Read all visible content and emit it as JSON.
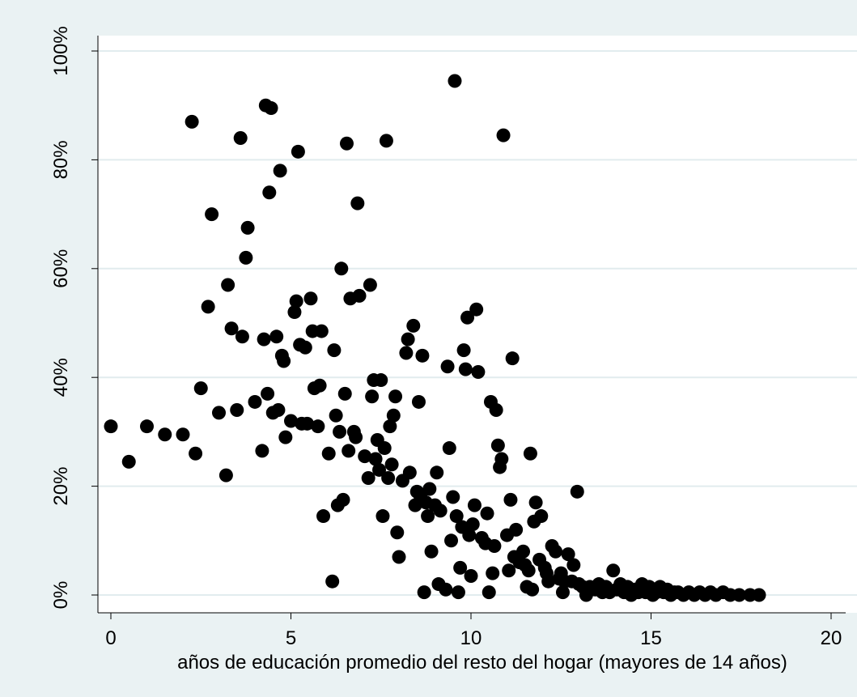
{
  "chart_data": {
    "type": "scatter",
    "title": "",
    "xlabel": "años de educación promedio del resto del hogar (mayores de 14 años)",
    "ylabel": "",
    "xlim": [
      0,
      20
    ],
    "ylim": [
      0,
      100
    ],
    "x_ticks": [
      0,
      5,
      10,
      15,
      20
    ],
    "x_tick_labels": [
      "0",
      "5",
      "10",
      "15",
      "20"
    ],
    "y_ticks": [
      0,
      20,
      40,
      60,
      80,
      100
    ],
    "y_tick_labels": [
      "0%",
      "20%",
      "40%",
      "60%",
      "80%",
      "100%"
    ],
    "grid": "horizontal",
    "legend": "none",
    "colors": {
      "background": "#eaf2f3",
      "plot_area": "#ffffff",
      "marker": "#000000",
      "grid": "#e2ecee"
    },
    "series": [
      {
        "points": [
          [
            0.0,
            31
          ],
          [
            0.5,
            24.5
          ],
          [
            1.0,
            31
          ],
          [
            1.5,
            29.5
          ],
          [
            2.0,
            29.5
          ],
          [
            2.25,
            87
          ],
          [
            2.35,
            26
          ],
          [
            2.5,
            38
          ],
          [
            2.7,
            53
          ],
          [
            2.8,
            70
          ],
          [
            3.0,
            33.5
          ],
          [
            3.2,
            22
          ],
          [
            3.25,
            57
          ],
          [
            3.35,
            49
          ],
          [
            3.5,
            34
          ],
          [
            3.6,
            84
          ],
          [
            3.65,
            47.5
          ],
          [
            3.75,
            62
          ],
          [
            3.8,
            67.5
          ],
          [
            4.0,
            35.5
          ],
          [
            4.2,
            26.5
          ],
          [
            4.25,
            47
          ],
          [
            4.3,
            90
          ],
          [
            4.35,
            37
          ],
          [
            4.4,
            74
          ],
          [
            4.45,
            89.5
          ],
          [
            4.5,
            33.5
          ],
          [
            4.6,
            47.5
          ],
          [
            4.65,
            34
          ],
          [
            4.7,
            78
          ],
          [
            4.75,
            44
          ],
          [
            4.8,
            43
          ],
          [
            4.85,
            29
          ],
          [
            5.0,
            32
          ],
          [
            5.1,
            52
          ],
          [
            5.15,
            54
          ],
          [
            5.2,
            81.5
          ],
          [
            5.25,
            46
          ],
          [
            5.3,
            31.5
          ],
          [
            5.4,
            45.5
          ],
          [
            5.45,
            31.5
          ],
          [
            5.55,
            54.5
          ],
          [
            5.6,
            48.5
          ],
          [
            5.65,
            38
          ],
          [
            5.75,
            31
          ],
          [
            5.8,
            38.5
          ],
          [
            5.85,
            48.5
          ],
          [
            5.9,
            14.5
          ],
          [
            6.05,
            26
          ],
          [
            6.15,
            2.5
          ],
          [
            6.2,
            45
          ],
          [
            6.25,
            33
          ],
          [
            6.3,
            16.5
          ],
          [
            6.35,
            30
          ],
          [
            6.4,
            60
          ],
          [
            6.45,
            17.5
          ],
          [
            6.5,
            37
          ],
          [
            6.55,
            83
          ],
          [
            6.6,
            26.5
          ],
          [
            6.65,
            54.5
          ],
          [
            6.75,
            30
          ],
          [
            6.8,
            29
          ],
          [
            6.85,
            72
          ],
          [
            6.9,
            55
          ],
          [
            7.05,
            25.5
          ],
          [
            7.15,
            21.5
          ],
          [
            7.2,
            57
          ],
          [
            7.25,
            36.5
          ],
          [
            7.3,
            39.5
          ],
          [
            7.35,
            25
          ],
          [
            7.4,
            28.5
          ],
          [
            7.45,
            23
          ],
          [
            7.5,
            39.5
          ],
          [
            7.55,
            14.5
          ],
          [
            7.6,
            27
          ],
          [
            7.65,
            83.5
          ],
          [
            7.7,
            21.5
          ],
          [
            7.75,
            31
          ],
          [
            7.8,
            24
          ],
          [
            7.85,
            33
          ],
          [
            7.9,
            36.5
          ],
          [
            7.95,
            11.5
          ],
          [
            8.0,
            7
          ],
          [
            8.1,
            21
          ],
          [
            8.2,
            44.5
          ],
          [
            8.25,
            47
          ],
          [
            8.3,
            22.5
          ],
          [
            8.4,
            49.5
          ],
          [
            8.45,
            16.5
          ],
          [
            8.5,
            19
          ],
          [
            8.55,
            35.5
          ],
          [
            8.6,
            18
          ],
          [
            8.65,
            44
          ],
          [
            8.7,
            0.5
          ],
          [
            8.75,
            17
          ],
          [
            8.8,
            14.5
          ],
          [
            8.85,
            19.5
          ],
          [
            8.9,
            8
          ],
          [
            9.0,
            16.5
          ],
          [
            9.05,
            22.5
          ],
          [
            9.1,
            2
          ],
          [
            9.15,
            15.5
          ],
          [
            9.3,
            1
          ],
          [
            9.35,
            42
          ],
          [
            9.4,
            27
          ],
          [
            9.45,
            10
          ],
          [
            9.5,
            18
          ],
          [
            9.55,
            94.5
          ],
          [
            9.6,
            14.5
          ],
          [
            9.65,
            0.5
          ],
          [
            9.7,
            5
          ],
          [
            9.75,
            12.5
          ],
          [
            9.8,
            45
          ],
          [
            9.85,
            41.5
          ],
          [
            9.9,
            51
          ],
          [
            9.95,
            11
          ],
          [
            10.0,
            3.5
          ],
          [
            10.05,
            13
          ],
          [
            10.1,
            16.5
          ],
          [
            10.15,
            52.5
          ],
          [
            10.2,
            41
          ],
          [
            10.3,
            10.5
          ],
          [
            10.4,
            9.5
          ],
          [
            10.45,
            15
          ],
          [
            10.5,
            0.5
          ],
          [
            10.55,
            35.5
          ],
          [
            10.6,
            4
          ],
          [
            10.65,
            9
          ],
          [
            10.7,
            34
          ],
          [
            10.75,
            27.5
          ],
          [
            10.8,
            23.5
          ],
          [
            10.85,
            25
          ],
          [
            10.9,
            84.5
          ],
          [
            11.0,
            11
          ],
          [
            11.05,
            4.5
          ],
          [
            11.1,
            17.5
          ],
          [
            11.15,
            43.5
          ],
          [
            11.2,
            7
          ],
          [
            11.25,
            12
          ],
          [
            11.35,
            6
          ],
          [
            11.45,
            8
          ],
          [
            11.5,
            5.5
          ],
          [
            11.55,
            1.5
          ],
          [
            11.6,
            4.5
          ],
          [
            11.65,
            26
          ],
          [
            11.7,
            1
          ],
          [
            11.75,
            13.5
          ],
          [
            11.8,
            17
          ],
          [
            11.9,
            6.5
          ],
          [
            11.95,
            14.5
          ],
          [
            12.05,
            5
          ],
          [
            12.1,
            4
          ],
          [
            12.15,
            2.5
          ],
          [
            12.25,
            9
          ],
          [
            12.35,
            8
          ],
          [
            12.45,
            3
          ],
          [
            12.5,
            4
          ],
          [
            12.55,
            0.5
          ],
          [
            12.6,
            2.5
          ],
          [
            12.7,
            7.5
          ],
          [
            12.8,
            2.5
          ],
          [
            12.85,
            5.5
          ],
          [
            12.95,
            19
          ],
          [
            13.0,
            2
          ],
          [
            13.1,
            1.5
          ],
          [
            13.2,
            0
          ],
          [
            13.3,
            1.5
          ],
          [
            13.45,
            1
          ],
          [
            13.55,
            2
          ],
          [
            13.65,
            0.5
          ],
          [
            13.75,
            1.5
          ],
          [
            13.85,
            0.5
          ],
          [
            13.95,
            4.5
          ],
          [
            14.05,
            1
          ],
          [
            14.15,
            2
          ],
          [
            14.25,
            0.5
          ],
          [
            14.35,
            1.5
          ],
          [
            14.45,
            0
          ],
          [
            14.55,
            1
          ],
          [
            14.65,
            0.5
          ],
          [
            14.75,
            2
          ],
          [
            14.85,
            0.5
          ],
          [
            14.95,
            1.5
          ],
          [
            15.05,
            0
          ],
          [
            15.15,
            0.5
          ],
          [
            15.25,
            1.5
          ],
          [
            15.35,
            0.5
          ],
          [
            15.45,
            1
          ],
          [
            15.55,
            0
          ],
          [
            15.65,
            0.5
          ],
          [
            15.75,
            0.5
          ],
          [
            15.9,
            0
          ],
          [
            16.05,
            0.5
          ],
          [
            16.2,
            0
          ],
          [
            16.35,
            0.5
          ],
          [
            16.5,
            0
          ],
          [
            16.65,
            0.5
          ],
          [
            16.8,
            0
          ],
          [
            17.0,
            0.5
          ],
          [
            17.2,
            0
          ],
          [
            17.45,
            0
          ],
          [
            17.75,
            0
          ],
          [
            18.0,
            0
          ]
        ]
      }
    ]
  }
}
